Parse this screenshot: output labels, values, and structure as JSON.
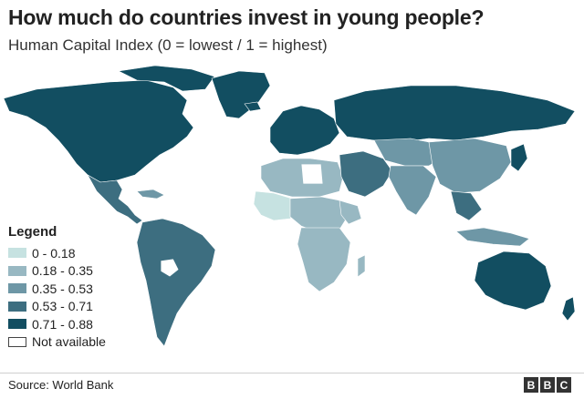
{
  "header": {
    "title": "How much do countries invest in young people?",
    "subtitle": "Human Capital Index (0 = lowest / 1 = highest)"
  },
  "legend": {
    "title": "Legend",
    "items": [
      {
        "label": "0 - 0.18",
        "color": "#c6e2e1"
      },
      {
        "label": "0.18 - 0.35",
        "color": "#98b8c2"
      },
      {
        "label": "0.35 - 0.53",
        "color": "#6e97a6"
      },
      {
        "label": "0.53 - 0.71",
        "color": "#3d6e80"
      },
      {
        "label": "0.71 - 0.88",
        "color": "#124e61"
      },
      {
        "label": "Not available",
        "color": "#ffffff"
      }
    ]
  },
  "footer": {
    "source": "Source: World Bank",
    "logo_letters": [
      "B",
      "B",
      "C"
    ]
  }
}
